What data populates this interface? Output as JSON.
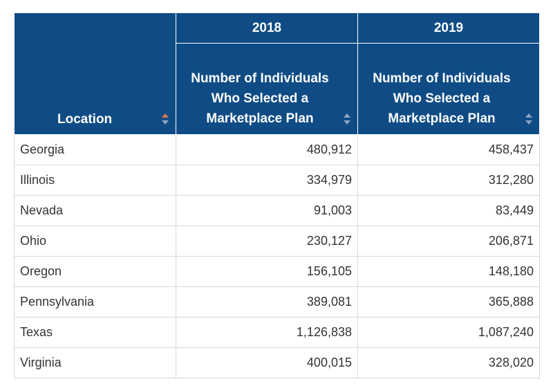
{
  "table": {
    "headers": {
      "location": "Location",
      "year_2018": "2018",
      "year_2019": "2019",
      "metric_2018": "Number of Individuals Who Selected a Marketplace Plan",
      "metric_2019": "Number of Individuals Who Selected a Marketplace Plan"
    },
    "sort_colors": {
      "active": "#e0754b",
      "inactive": "#8ea6c4"
    },
    "rows": [
      {
        "location": "Georgia",
        "v2018": "480,912",
        "v2019": "458,437"
      },
      {
        "location": "Illinois",
        "v2018": "334,979",
        "v2019": "312,280"
      },
      {
        "location": "Nevada",
        "v2018": "91,003",
        "v2019": "83,449"
      },
      {
        "location": "Ohio",
        "v2018": "230,127",
        "v2019": "206,871"
      },
      {
        "location": "Oregon",
        "v2018": "156,105",
        "v2019": "148,180"
      },
      {
        "location": "Pennsylvania",
        "v2018": "389,081",
        "v2019": "365,888"
      },
      {
        "location": "Texas",
        "v2018": "1,126,838",
        "v2019": "1,087,240"
      },
      {
        "location": "Virginia",
        "v2018": "400,015",
        "v2019": "328,020"
      }
    ]
  }
}
